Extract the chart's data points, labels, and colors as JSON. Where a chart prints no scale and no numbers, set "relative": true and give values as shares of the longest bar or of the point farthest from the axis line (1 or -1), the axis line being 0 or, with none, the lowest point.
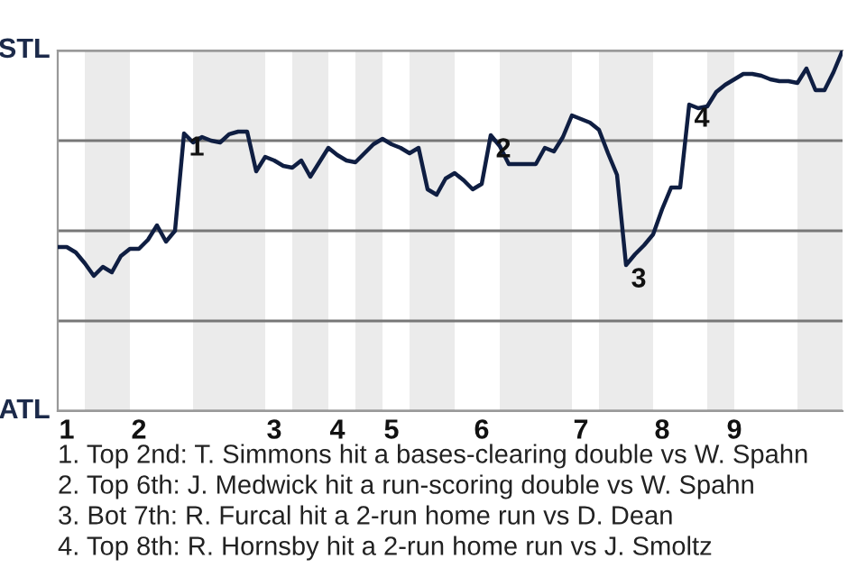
{
  "chart_data": {
    "type": "line",
    "relative": true,
    "categories": [
      null,
      "1",
      null,
      null,
      null,
      null,
      null,
      null,
      null,
      "2",
      null,
      null,
      null,
      null,
      null,
      null,
      null,
      null,
      null,
      null,
      null,
      null,
      null,
      null,
      "3",
      null,
      null,
      null,
      null,
      null,
      null,
      "4",
      null,
      null,
      null,
      null,
      null,
      "5",
      null,
      null,
      null,
      null,
      null,
      null,
      null,
      null,
      null,
      "6",
      null,
      null,
      null,
      null,
      null,
      null,
      null,
      null,
      null,
      null,
      "7",
      null,
      null,
      null,
      null,
      null,
      null,
      null,
      null,
      "8",
      null,
      null,
      null,
      null,
      null,
      null,
      null,
      "9",
      null,
      null,
      null,
      null,
      null,
      null,
      null,
      null,
      null,
      null,
      null,
      null
    ],
    "series": [
      {
        "color": "#0f1e42",
        "values": [
          0.455,
          0.455,
          0.44,
          0.41,
          0.375,
          0.4,
          0.385,
          0.43,
          0.45,
          0.45,
          0.475,
          0.515,
          0.47,
          0.5,
          0.77,
          0.745,
          0.76,
          0.75,
          0.745,
          0.768,
          0.775,
          0.775,
          0.665,
          0.705,
          0.695,
          0.68,
          0.675,
          0.695,
          0.65,
          0.69,
          0.73,
          0.71,
          0.695,
          0.69,
          0.715,
          0.74,
          0.755,
          0.74,
          0.73,
          0.715,
          0.73,
          0.615,
          0.6,
          0.645,
          0.66,
          0.64,
          0.615,
          0.63,
          0.765,
          0.735,
          0.685,
          0.685,
          0.685,
          0.685,
          0.73,
          0.72,
          0.76,
          0.82,
          0.81,
          0.8,
          0.78,
          0.715,
          0.655,
          0.405,
          0.435,
          0.46,
          0.49,
          0.56,
          0.62,
          0.62,
          0.85,
          0.84,
          0.845,
          0.885,
          0.905,
          0.92,
          0.935,
          0.935,
          0.93,
          0.92,
          0.915,
          0.915,
          0.91,
          0.95,
          0.89,
          0.89,
          0.94,
          1.0
        ]
      }
    ],
    "grid": "y",
    "marker": "none",
    "line_style": "solid",
    "annotations": [
      "STL",
      "ATL",
      {
        "text": "1",
        "y": 0.77
      },
      {
        "text": "2",
        "y": 0.765
      },
      {
        "text": "3",
        "y": 0.405
      },
      {
        "text": "4",
        "y": 0.85
      },
      "1. Top 2nd: T. Simmons hit a bases-clearing double vs W. Spahn",
      "2. Top 6th: J. Medwick hit a run-scoring double vs W. Spahn",
      "3. Bot 7th: R. Furcal hit a 2-run home run vs D. Dean",
      "4. Top 8th: R. Hornsby hit a 2-run home run vs J. Smoltz"
    ]
  }
}
